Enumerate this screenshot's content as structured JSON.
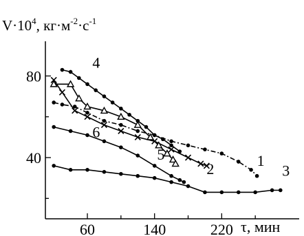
{
  "chart_data": {
    "type": "line",
    "ylabel": {
      "base": "V·10",
      "exp1": "4",
      "unit_a": ", кг·м",
      "exp2": "-2",
      "unit_b": "·с",
      "exp3": "-1"
    },
    "xlabel": {
      "symbol": "τ",
      "unit": ", мин"
    },
    "x_ticks": [
      "60",
      "140",
      "220"
    ],
    "x_tick_values": [
      60,
      140,
      220
    ],
    "y_ticks": [
      "40",
      "80"
    ],
    "y_tick_values": [
      40,
      80
    ],
    "xlim": [
      10,
      300
    ],
    "ylim": [
      10,
      97
    ],
    "grid": false,
    "series": [
      {
        "name": "1",
        "style": "dashdot",
        "marker": "dot",
        "label_pos": [
          262,
          36
        ],
        "points": [
          [
            20,
            67
          ],
          [
            30,
            66
          ],
          [
            45,
            65
          ],
          [
            60,
            62
          ],
          [
            80,
            58
          ],
          [
            100,
            56
          ],
          [
            120,
            53
          ],
          [
            140,
            51
          ],
          [
            160,
            48
          ],
          [
            180,
            46
          ],
          [
            200,
            44
          ],
          [
            220,
            42
          ],
          [
            240,
            38
          ],
          [
            255,
            34
          ],
          [
            262,
            31
          ]
        ]
      },
      {
        "name": "2",
        "style": "solid",
        "marker": "x",
        "label_pos": [
          202,
          32
        ],
        "points": [
          [
            20,
            78
          ],
          [
            30,
            72
          ],
          [
            45,
            63
          ],
          [
            60,
            60
          ],
          [
            80,
            56
          ],
          [
            100,
            53
          ],
          [
            120,
            50
          ],
          [
            140,
            48
          ],
          [
            160,
            44
          ],
          [
            180,
            40
          ],
          [
            195,
            37
          ],
          [
            202,
            36
          ]
        ]
      },
      {
        "name": "3",
        "style": "solid",
        "marker": "dot",
        "label_pos": [
          292,
          31
        ],
        "points": [
          [
            20,
            36
          ],
          [
            40,
            34
          ],
          [
            60,
            34
          ],
          [
            80,
            33
          ],
          [
            100,
            32
          ],
          [
            120,
            31
          ],
          [
            140,
            30
          ],
          [
            160,
            28
          ],
          [
            180,
            26
          ],
          [
            200,
            23
          ],
          [
            220,
            23
          ],
          [
            240,
            23
          ],
          [
            260,
            23
          ],
          [
            280,
            24
          ],
          [
            290,
            24
          ]
        ]
      },
      {
        "name": "4",
        "style": "solid",
        "marker": "dot",
        "label_pos": [
          66,
          84
        ],
        "points": [
          [
            30,
            83
          ],
          [
            40,
            82
          ],
          [
            50,
            79
          ],
          [
            60,
            76
          ],
          [
            70,
            73
          ],
          [
            80,
            70
          ],
          [
            90,
            67
          ],
          [
            100,
            64
          ],
          [
            110,
            61
          ],
          [
            120,
            58
          ],
          [
            130,
            55
          ],
          [
            140,
            51
          ],
          [
            150,
            49
          ],
          [
            160,
            46
          ],
          [
            170,
            43
          ]
        ]
      },
      {
        "name": "5",
        "style": "solid",
        "marker": "triangle",
        "label_pos": [
          143,
          39
        ],
        "points": [
          [
            20,
            76
          ],
          [
            40,
            76
          ],
          [
            50,
            69
          ],
          [
            60,
            65
          ],
          [
            80,
            63
          ],
          [
            100,
            60
          ],
          [
            120,
            56
          ],
          [
            135,
            50
          ],
          [
            145,
            46
          ],
          [
            155,
            42
          ],
          [
            162,
            39
          ],
          [
            165,
            37
          ]
        ]
      },
      {
        "name": "6",
        "style": "solid",
        "marker": "dot",
        "label_pos": [
          66,
          50
        ],
        "points": [
          [
            20,
            55
          ],
          [
            40,
            53
          ],
          [
            60,
            51
          ],
          [
            80,
            48
          ],
          [
            100,
            45
          ],
          [
            120,
            41
          ],
          [
            140,
            36
          ],
          [
            160,
            31
          ],
          [
            170,
            29
          ],
          [
            175,
            28
          ]
        ]
      }
    ]
  }
}
